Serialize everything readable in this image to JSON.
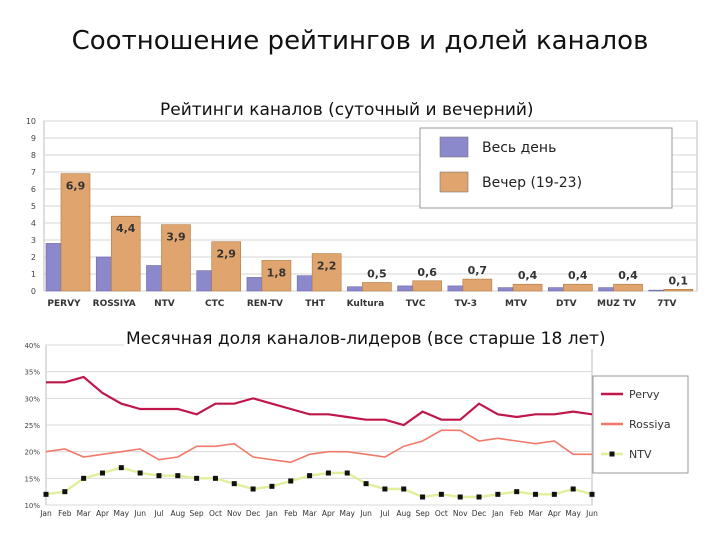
{
  "slide": {
    "title": "Соотношение рейтингов и долей каналов"
  },
  "chart_data": [
    {
      "type": "bar",
      "title": "Рейтинги каналов (суточный и вечерний)",
      "ylim": [
        0,
        10
      ],
      "yticks": [
        0,
        1,
        2,
        3,
        4,
        5,
        6,
        7,
        8,
        9,
        10
      ],
      "grid": true,
      "legend_position": "top-right",
      "categories": [
        "PERVY",
        "ROSSIYA",
        "NTV",
        "CTC",
        "REN-TV",
        "THT",
        "Kultura",
        "TVC",
        "TV-3",
        "MTV",
        "DTV",
        "MUZ TV",
        "7TV"
      ],
      "series": [
        {
          "name": "Весь день",
          "color": "#8c88cc",
          "values": [
            2.8,
            2.0,
            1.5,
            1.2,
            0.8,
            0.9,
            0.25,
            0.3,
            0.3,
            0.2,
            0.2,
            0.2,
            0.05
          ]
        },
        {
          "name": "Вечер (19-23)",
          "color": "#e0a56f",
          "values": [
            6.9,
            4.4,
            3.9,
            2.9,
            1.8,
            2.2,
            0.5,
            0.6,
            0.7,
            0.4,
            0.4,
            0.4,
            0.1
          ],
          "labels": [
            "6,9",
            "4,4",
            "3,9",
            "2,9",
            "1,8",
            "2,2",
            "0,5",
            "0,6",
            "0,7",
            "0,4",
            "0,4",
            "0,4",
            "0,1"
          ]
        }
      ]
    },
    {
      "type": "line",
      "title": "Месячная доля каналов-лидеров (все старше 18 лет)",
      "ylim": [
        10,
        40
      ],
      "yticks": [
        "10%",
        "15%",
        "20%",
        "25%",
        "30%",
        "35%",
        "40%"
      ],
      "grid": true,
      "legend_position": "right",
      "x": [
        "Jan",
        "Feb",
        "Mar",
        "Apr",
        "May",
        "Jun",
        "Jul",
        "Aug",
        "Sep",
        "Oct",
        "Nov",
        "Dec",
        "Jan",
        "Feb",
        "Mar",
        "Apr",
        "May",
        "Jun",
        "Jul",
        "Aug",
        "Sep",
        "Oct",
        "Nov",
        "Dec",
        "Jan",
        "Feb",
        "Mar",
        "Apr",
        "May",
        "Jun"
      ],
      "series": [
        {
          "name": "Pervy",
          "color": "#c0174a",
          "values": [
            33,
            33,
            34,
            31,
            29,
            28,
            28,
            28,
            27,
            29,
            29,
            30,
            29,
            28,
            27,
            27,
            26.5,
            26,
            26,
            25,
            27.5,
            26,
            26,
            29,
            27,
            26.5,
            27,
            27,
            27.5,
            27
          ]
        },
        {
          "name": "Rossiya",
          "color": "#f07a6a",
          "values": [
            20,
            20.5,
            19,
            19.5,
            20,
            20.5,
            18.5,
            19,
            21,
            21,
            21.5,
            19,
            18.5,
            18,
            19.5,
            20,
            20,
            19.5,
            19,
            21,
            22,
            24,
            24,
            22,
            22.5,
            22,
            21.5,
            22,
            19.5,
            19.5
          ]
        },
        {
          "name": "NTV",
          "color": "#e3ee9c",
          "marker_color": "#111111",
          "values": [
            12,
            12.5,
            15,
            16,
            17,
            16,
            15.5,
            15.5,
            15,
            15,
            14,
            13,
            13.5,
            14.5,
            15.5,
            16,
            16,
            14,
            13,
            13,
            11.5,
            12,
            11.5,
            11.5,
            12,
            12.5,
            12,
            12,
            13,
            12
          ]
        }
      ]
    }
  ]
}
